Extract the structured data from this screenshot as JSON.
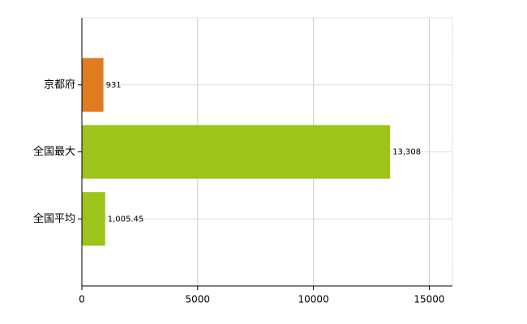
{
  "chart_data": {
    "type": "barh",
    "categories": [
      "京都府",
      "全国最大",
      "全国平均"
    ],
    "values": [
      931,
      13308,
      1005.45
    ],
    "value_labels": [
      "931",
      "13,308",
      "1,005.45"
    ],
    "colors": [
      "#e07b20",
      "#9dc41a",
      "#9dc41a"
    ],
    "xlim": [
      0,
      16000
    ],
    "xticks": [
      0,
      5000,
      10000,
      15000
    ],
    "grid": true
  }
}
